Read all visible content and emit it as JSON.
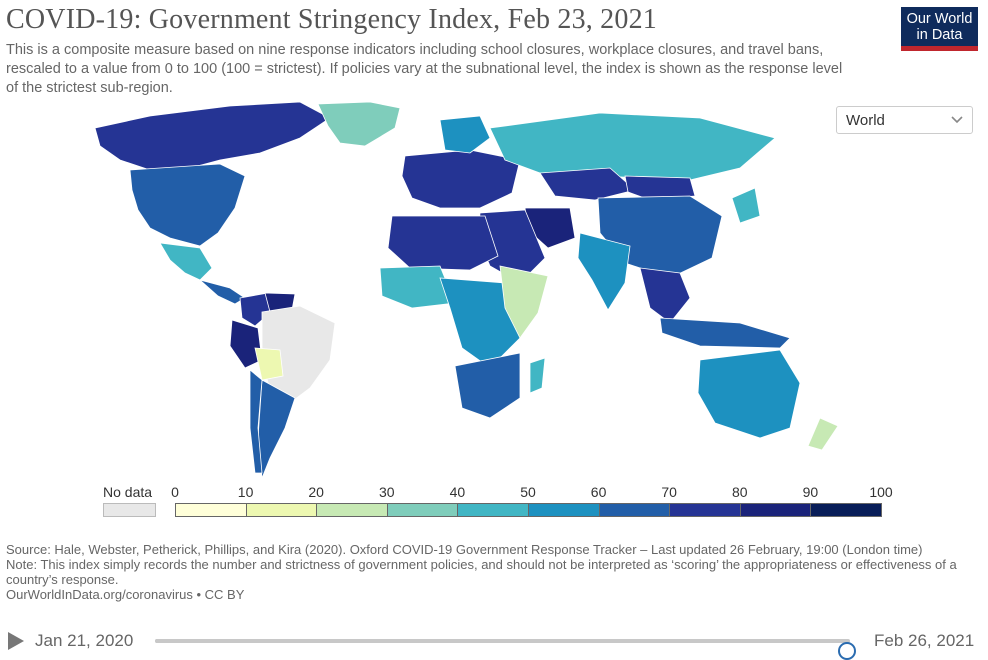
{
  "header": {
    "title": "COVID-19: Government Stringency Index, Feb 23, 2021",
    "subtitle": "This is a composite measure based on nine response indicators including school closures, workplace closures, and travel bans, rescaled to a value from 0 to 100 (100 = strictest). If policies vary at the subnational level, the index is shown as the response level of the strictest sub-region.",
    "logo_line1": "Our World",
    "logo_line2": "in Data"
  },
  "region_select": {
    "value": "World"
  },
  "legend": {
    "no_data_label": "No data",
    "ticks": [
      "0",
      "10",
      "20",
      "30",
      "40",
      "50",
      "60",
      "70",
      "80",
      "90",
      "100"
    ],
    "colors": [
      "#ffffd9",
      "#edf8b1",
      "#c7e9b4",
      "#7fcdbb",
      "#41b6c4",
      "#1d91c0",
      "#225ea8",
      "#253494",
      "#1a237a",
      "#081d58"
    ],
    "no_data_color": "#e8e8e8"
  },
  "map_regions": [
    {
      "name": "Canada",
      "value": 75
    },
    {
      "name": "United States",
      "value": 64
    },
    {
      "name": "Greenland",
      "value": 35
    },
    {
      "name": "Mexico",
      "value": 45
    },
    {
      "name": "Central America",
      "value": 62
    },
    {
      "name": "Colombia",
      "value": 72
    },
    {
      "name": "Venezuela",
      "value": 82
    },
    {
      "name": "Peru",
      "value": 80
    },
    {
      "name": "Brazil",
      "value": null
    },
    {
      "name": "Bolivia",
      "value": 12
    },
    {
      "name": "Argentina",
      "value": 65
    },
    {
      "name": "Chile",
      "value": 62
    },
    {
      "name": "Europe",
      "value": 75
    },
    {
      "name": "Scandinavia",
      "value": 58
    },
    {
      "name": "Russia",
      "value": 44
    },
    {
      "name": "Kazakhstan",
      "value": 78
    },
    {
      "name": "Mongolia",
      "value": 70
    },
    {
      "name": "China",
      "value": 68
    },
    {
      "name": "India",
      "value": 58
    },
    {
      "name": "Iran",
      "value": 88
    },
    {
      "name": "Middle East",
      "value": 70
    },
    {
      "name": "North Africa",
      "value": 76
    },
    {
      "name": "West Africa",
      "value": 42
    },
    {
      "name": "Central Africa",
      "value": 55
    },
    {
      "name": "East Africa",
      "value": 28
    },
    {
      "name": "Southern Africa",
      "value": 60
    },
    {
      "name": "Madagascar",
      "value": 40
    },
    {
      "name": "Southeast Asia",
      "value": 72
    },
    {
      "name": "Indonesia",
      "value": 68
    },
    {
      "name": "Australia",
      "value": 55
    },
    {
      "name": "New Zealand",
      "value": 22
    },
    {
      "name": "Japan",
      "value": 45
    }
  ],
  "source": {
    "line1": "Source: Hale, Webster, Petherick, Phillips, and Kira (2020). Oxford COVID-19 Government Response Tracker – Last updated 26 February, 19:00 (London time)",
    "line2": "Note: This index simply records the number and strictness of government policies, and should not be interpreted as ‘scoring’ the appropriateness or effectiveness of a country’s response.",
    "line3": "OurWorldInData.org/coronavirus • CC BY"
  },
  "timeline": {
    "start": "Jan 21, 2020",
    "end": "Feb 26, 2021",
    "position": 0.995
  }
}
